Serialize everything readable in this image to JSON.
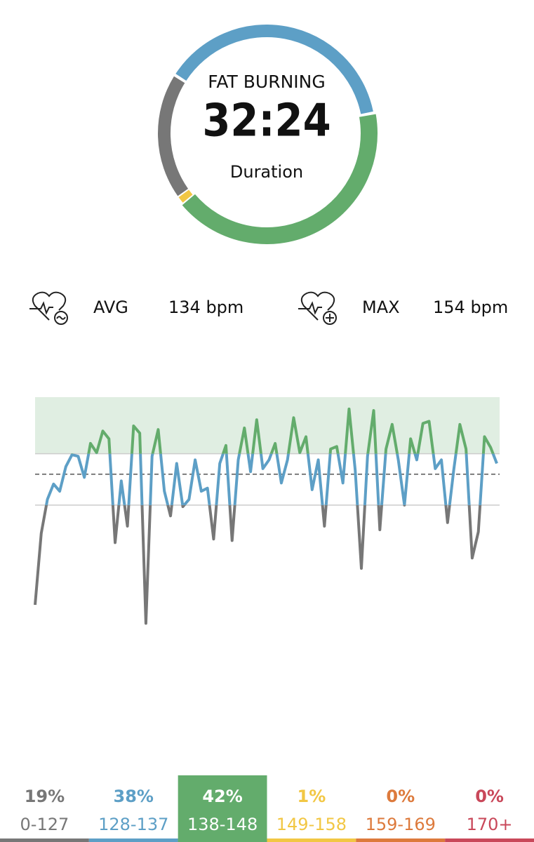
{
  "ring": {
    "title": "FAT BURNING",
    "value": "32:24",
    "caption": "Duration"
  },
  "stats": [
    {
      "label": "AVG",
      "value": 134,
      "value_label": "134 bpm"
    },
    {
      "label": "MAX",
      "value": 154,
      "value_label": "154 bpm"
    }
  ],
  "chart_data": {
    "type": "line",
    "values": [
      108.6,
      122.5,
      129.1,
      132.1,
      130.7,
      135.5,
      137.8,
      137.5,
      133.4,
      140,
      138.2,
      142.4,
      140.9,
      120.7,
      132.7,
      123.9,
      143.4,
      142,
      105,
      137.5,
      142.7,
      130.7,
      125.9,
      136.1,
      127.7,
      129.1,
      136.8,
      130.7,
      131.3,
      121.4,
      136.1,
      139.6,
      121.1,
      136.8,
      143,
      134.5,
      144.6,
      135.1,
      136.8,
      140,
      132.3,
      136.8,
      145,
      138.2,
      141.3,
      131,
      136.8,
      123.9,
      138.9,
      139.4,
      132.3,
      146.7,
      134.8,
      115.7,
      137.5,
      146.4,
      123.2,
      138.9,
      143.7,
      136.8,
      128,
      140.9,
      136.8,
      143.9,
      144.3,
      135.1,
      136.8,
      124.6,
      134.8,
      143.7,
      138.9,
      117.7,
      122.8,
      141.3,
      139.2,
      136.1
    ],
    "ylim": [
      100,
      149
    ],
    "target_zone": [
      138,
      149
    ],
    "floor_line": 128
  },
  "zones": [
    {
      "value": 19,
      "value_label": "19%",
      "range": "0-127",
      "color": "#777777"
    },
    {
      "value": 38,
      "value_label": "38%",
      "range": "128-137",
      "color": "#5d9fc6"
    },
    {
      "value": 42,
      "value_label": "42%",
      "range": "138-148",
      "color": "#63ac6c"
    },
    {
      "value": 1,
      "value_label": "1%",
      "range": "149-158",
      "color": "#f2c744"
    },
    {
      "value": 0,
      "value_label": "0%",
      "range": "159-169",
      "color": "#dd7a3c"
    },
    {
      "value": 0,
      "value_label": "0%",
      "range": "170+",
      "color": "#c9485a"
    }
  ],
  "selected_zone": 2
}
